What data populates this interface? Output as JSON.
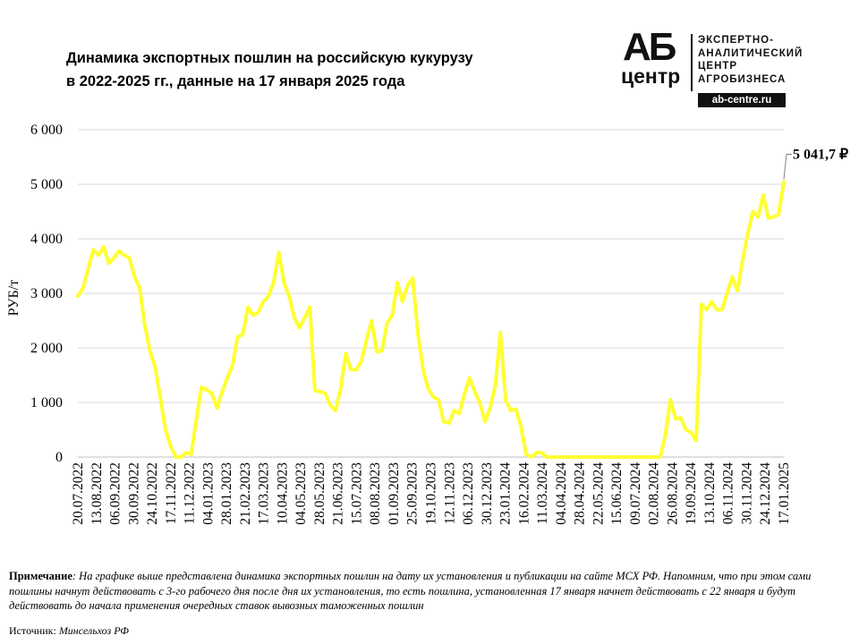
{
  "header": {
    "title_line1": "Динамика экспортных пошлин на российскую кукурузу",
    "title_line2": "в 2022-2025 гг., данные на 17 января 2025 года"
  },
  "logo": {
    "letters_top": "АБ",
    "letters_bottom": "центр",
    "org_lines": [
      "ЭКСПЕРТНО-",
      "АНАЛИТИЧЕСКИЙ",
      "ЦЕНТР",
      "АГРОБИЗНЕСА"
    ],
    "site": "ab-centre.ru"
  },
  "note": {
    "label": "Примечание",
    "text": ": На графике выше представлена динамика экспортных пошлин на дату их установления и публикации на сайте МСХ РФ. Напомним, что при этом сами пошлины начнут действовать с 3-го рабочего дня после дня их установления, то есть пошлина, установленная 17 января начнет действовать с 22 января и будут действовать до начала применения очередных ставок вывозных таможенных пошлин"
  },
  "source": {
    "label": "Источник: ",
    "text": "Минсельхоз РФ"
  },
  "chart_data": {
    "type": "line",
    "ylabel": "РУБ/т",
    "xlabel": "",
    "ylim": [
      0,
      6000
    ],
    "y_ticks": [
      0,
      1000,
      2000,
      3000,
      4000,
      5000,
      6000
    ],
    "y_tick_labels": [
      "0",
      "1 000",
      "2 000",
      "3 000",
      "4 000",
      "5 000",
      "6 000"
    ],
    "grid": true,
    "line_color": "#ffff33",
    "x_tick_labels": [
      "20.07.2022",
      "13.08.2022",
      "06.09.2022",
      "30.09.2022",
      "24.10.2022",
      "17.11.2022",
      "11.12.2022",
      "04.01.2023",
      "28.01.2023",
      "21.02.2023",
      "17.03.2023",
      "10.04.2023",
      "04.05.2023",
      "28.05.2023",
      "21.06.2023",
      "15.07.2023",
      "08.08.2023",
      "01.09.2023",
      "25.09.2023",
      "19.10.2023",
      "12.11.2023",
      "06.12.2023",
      "30.12.2023",
      "23.01.2024",
      "16.02.2024",
      "11.03.2024",
      "04.04.2024",
      "28.04.2024",
      "22.05.2024",
      "15.06.2024",
      "09.07.2024",
      "02.08.2024",
      "26.08.2024",
      "19.09.2024",
      "13.10.2024",
      "06.11.2024",
      "30.11.2024",
      "24.12.2024",
      "17.01.2025"
    ],
    "annotation": "5 041,7 ₽",
    "series": [
      {
        "values": [
          2950,
          3100,
          3450,
          3800,
          3700,
          3850,
          3550,
          3650,
          3780,
          3700,
          3650,
          3300,
          3100,
          2400,
          1950,
          1650,
          1100,
          500,
          200,
          0,
          0,
          80,
          50,
          700,
          1280,
          1230,
          1170,
          900,
          1200,
          1450,
          1680,
          2200,
          2250,
          2750,
          2600,
          2650,
          2850,
          2950,
          3200,
          3750,
          3200,
          2950,
          2550,
          2370,
          2550,
          2750,
          1220,
          1200,
          1170,
          950,
          850,
          1250,
          1900,
          1600,
          1600,
          1750,
          2150,
          2500,
          1930,
          1950,
          2450,
          2600,
          3200,
          2850,
          3150,
          3280,
          2250,
          1600,
          1250,
          1100,
          1050,
          650,
          620,
          850,
          800,
          1150,
          1450,
          1200,
          1000,
          650,
          900,
          1300,
          2280,
          1050,
          850,
          880,
          550,
          50,
          0,
          80,
          80,
          0,
          0,
          0,
          0,
          0,
          0,
          0,
          0,
          0,
          0,
          0,
          0,
          0,
          0,
          0,
          0,
          0,
          0,
          0,
          0,
          0,
          0,
          0,
          400,
          1050,
          700,
          720,
          500,
          450,
          300,
          2800,
          2700,
          2850,
          2700,
          2700,
          3000,
          3300,
          3050,
          3600,
          4100,
          4500,
          4400,
          4800,
          4380,
          4400,
          4450,
          5041.7
        ]
      }
    ]
  }
}
